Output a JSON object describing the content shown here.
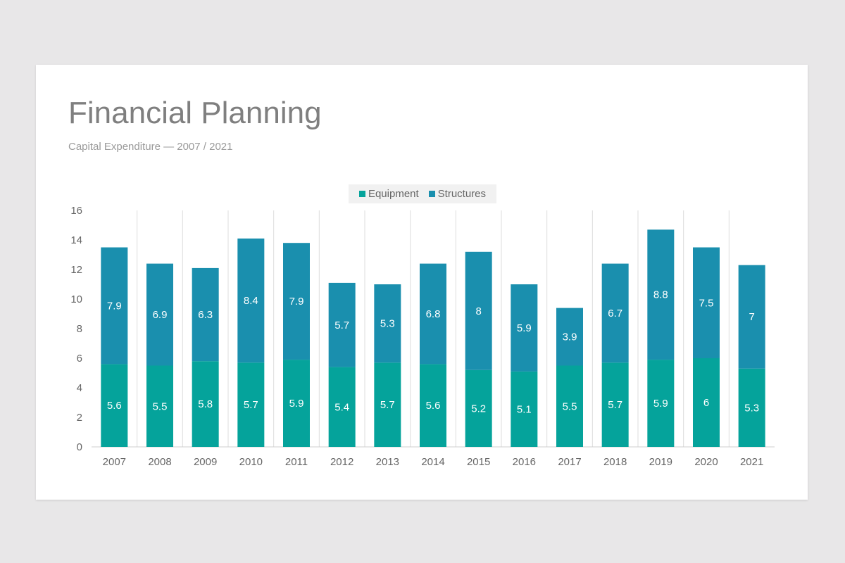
{
  "header": {
    "title": "Financial Planning",
    "subtitle": "Capital Expenditure — 2007 / 2021"
  },
  "colors": {
    "equipment": "#05a39b",
    "structures": "#1a8fae",
    "background": "#e8e7e8"
  },
  "chart_data": {
    "type": "bar",
    "stacked": true,
    "categories": [
      "2007",
      "2008",
      "2009",
      "2010",
      "2011",
      "2012",
      "2013",
      "2014",
      "2015",
      "2016",
      "2017",
      "2018",
      "2019",
      "2020",
      "2021"
    ],
    "series": [
      {
        "name": "Equipment",
        "values": [
          5.6,
          5.5,
          5.8,
          5.7,
          5.9,
          5.4,
          5.7,
          5.6,
          5.2,
          5.1,
          5.5,
          5.7,
          5.9,
          6,
          5.3
        ]
      },
      {
        "name": "Structures",
        "values": [
          7.9,
          6.9,
          6.3,
          8.4,
          7.9,
          5.7,
          5.3,
          6.8,
          8,
          5.9,
          3.9,
          6.7,
          8.8,
          7.5,
          7
        ]
      }
    ],
    "ylim": [
      0,
      16
    ],
    "yticks": [
      0,
      2,
      4,
      6,
      8,
      10,
      12,
      14,
      16
    ],
    "legend": "top-center",
    "grid": "vertical category separators"
  }
}
